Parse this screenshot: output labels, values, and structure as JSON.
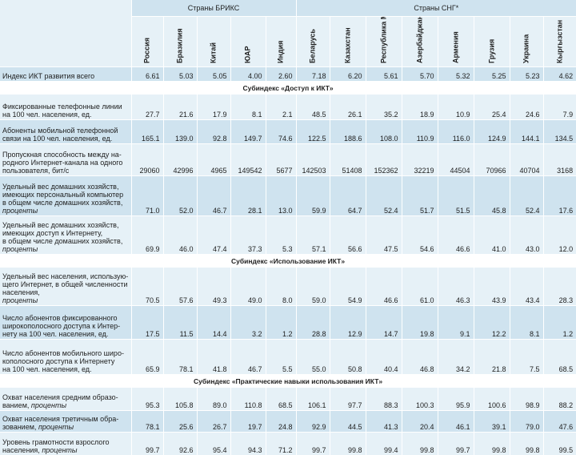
{
  "header": {
    "brics_group": "Страны БРИКС",
    "cis_group": "Страны СНГ*"
  },
  "countries": [
    "Россия",
    "Бразилия",
    "Китай",
    "ЮАР",
    "Индия",
    "Беларусь",
    "Казахстан",
    "Республика Молдова",
    "Азербайджан",
    "Армения",
    "Грузия",
    "Украина",
    "Кыргызстан"
  ],
  "index_row": {
    "label": "Индекс ИКТ развития    всего",
    "values": [
      "6.61",
      "5.03",
      "5.05",
      "4.00",
      "2.60",
      "7.18",
      "6.20",
      "5.61",
      "5.70",
      "5.32",
      "5.25",
      "5.23",
      "4.62"
    ]
  },
  "sections": [
    {
      "title": "Субиндекс «Доступ к ИКТ»",
      "rows": [
        {
          "label_lines": [
            "Фиксированные телефонные линии",
            "на 100 чел. населения, ед."
          ],
          "italic_tail": "",
          "values": [
            "27.7",
            "21.6",
            "17.9",
            "8.1",
            "2.1",
            "48.5",
            "26.1",
            "35.2",
            "18.9",
            "10.9",
            "25.4",
            "24.6",
            "7.9"
          ]
        },
        {
          "label_lines": [
            "Абоненты мобильной телефонной",
            "связи на 100 чел. населения, ед."
          ],
          "italic_tail": "",
          "values": [
            "165.1",
            "139.0",
            "92.8",
            "149.7",
            "74.6",
            "122.5",
            "188.6",
            "108.0",
            "110.9",
            "116.0",
            "124.9",
            "144.1",
            "134.5"
          ]
        },
        {
          "label_lines": [
            "Пропускная способность между на-",
            "родного Интернет-канала на одного",
            "пользователя, бит/с"
          ],
          "italic_tail": "",
          "values": [
            "29060",
            "42996",
            "4965",
            "149542",
            "5677",
            "142503",
            "51408",
            "152362",
            "32219",
            "44504",
            "70966",
            "40704",
            "3168"
          ]
        },
        {
          "label_lines": [
            "Удельный вес домашних хозяйств,",
            "имеющих персональный компьютер",
            "в общем числе домашних хозяйств,"
          ],
          "italic_tail": "проценты",
          "values": [
            "71.0",
            "52.0",
            "46.7",
            "28.1",
            "13.0",
            "59.9",
            "64.7",
            "52.4",
            "51.7",
            "51.5",
            "45.8",
            "52.4",
            "17.6"
          ]
        },
        {
          "label_lines": [
            "Удельный вес домашних хозяйств,",
            "имеющих доступ к Интернету,",
            "в общем числе домашних хозяйств,"
          ],
          "italic_tail": "проценты",
          "values": [
            "69.9",
            "46.0",
            "47.4",
            "37.3",
            "5.3",
            "57.1",
            "56.6",
            "47.5",
            "54.6",
            "46.6",
            "41.0",
            "43.0",
            "12.0"
          ]
        }
      ]
    },
    {
      "title": "Субиндекс «Использование ИКТ»",
      "rows": [
        {
          "label_lines": [
            "Удельный вес населения, использую-",
            "щего Интернет, в общей численности",
            "населения,"
          ],
          "italic_tail": "проценты",
          "values": [
            "70.5",
            "57.6",
            "49.3",
            "49.0",
            "8.0",
            "59.0",
            "54.9",
            "46.6",
            "61.0",
            "46.3",
            "43.9",
            "43.4",
            "28.3"
          ]
        },
        {
          "label_lines": [
            "Число абонентов фиксированного",
            "широкополосного доступа к Интер-",
            "нету на 100 чел. населения, ед."
          ],
          "italic_tail": "",
          "values": [
            "17.5",
            "11.5",
            "14.4",
            "3.2",
            "1.2",
            "28.8",
            "12.9",
            "14.7",
            "19.8",
            "9.1",
            "12.2",
            "8.1",
            "1.2"
          ]
        },
        {
          "label_lines": [
            "Число абонентов мобильного широ-",
            "кополосного доступа к Интернету",
            "на 100 чел. населения, ед."
          ],
          "italic_tail": "",
          "values": [
            "65.9",
            "78.1",
            "41.8",
            "46.7",
            "5.5",
            "55.0",
            "50.8",
            "40.4",
            "46.8",
            "34.2",
            "21.8",
            "7.5",
            "68.5"
          ]
        }
      ]
    },
    {
      "title": "Субиндекс «Практические навыки использования ИКТ»",
      "rows": [
        {
          "label_lines": [
            "Охват населения средним образо-",
            "ванием,"
          ],
          "italic_tail": "проценты",
          "values": [
            "95.3",
            "105.8",
            "89.0",
            "110.8",
            "68.5",
            "106.1",
            "97.7",
            "88.3",
            "100.3",
            "95.9",
            "100.6",
            "98.9",
            "88.2"
          ]
        },
        {
          "label_lines": [
            "Охват населения третичным обра-",
            "зованием,"
          ],
          "italic_tail": "проценты",
          "values": [
            "78.1",
            "25.6",
            "26.7",
            "19.7",
            "24.8",
            "92.9",
            "44.5",
            "41.3",
            "20.4",
            "46.1",
            "39.1",
            "79.0",
            "47.6"
          ]
        },
        {
          "label_lines": [
            "Уровень грамотности взрослого",
            "населения,"
          ],
          "italic_tail": "проценты",
          "values": [
            "99.7",
            "92.6",
            "95.4",
            "94.3",
            "71.2",
            "99.7",
            "99.8",
            "99.4",
            "99.8",
            "99.7",
            "99.8",
            "99.8",
            "99.5"
          ]
        }
      ]
    }
  ]
}
